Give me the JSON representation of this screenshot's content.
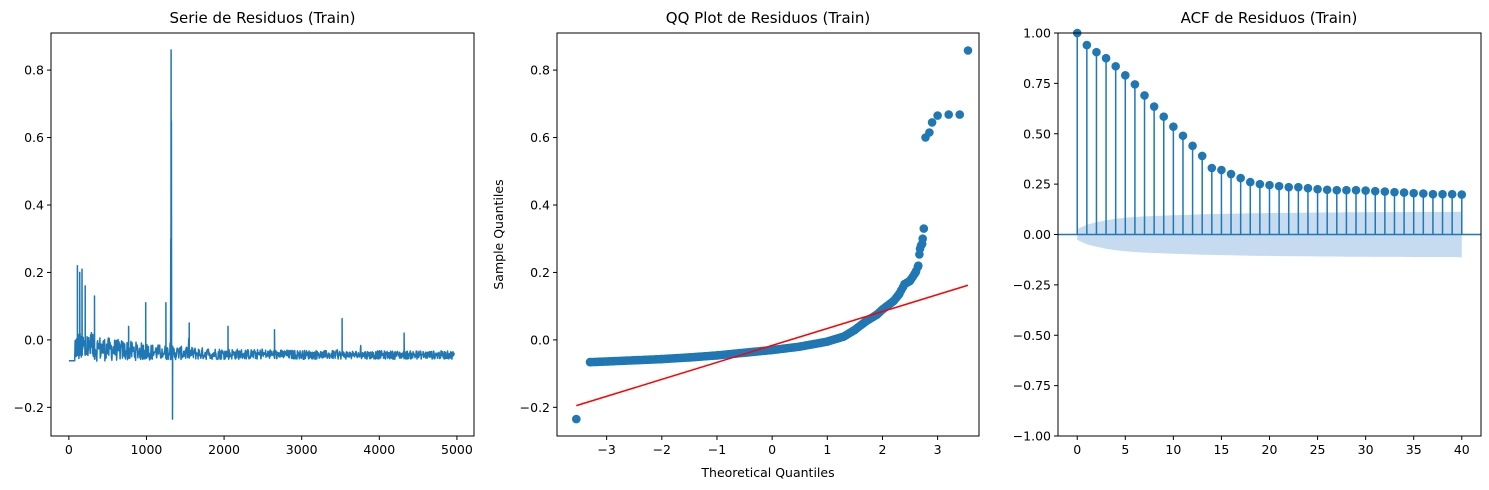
{
  "colors": {
    "series": "#1f77b4",
    "ref_line": "#ff0000",
    "conf_band": "#c6dbef",
    "axes": "#000000"
  },
  "chart_data": [
    {
      "type": "line",
      "title": "Serie de Residuos (Train)",
      "xlabel": "",
      "ylabel": "",
      "xlim": [
        -230,
        5220
      ],
      "ylim": [
        -0.285,
        0.91
      ],
      "xticks": [
        0,
        1000,
        2000,
        3000,
        4000,
        5000
      ],
      "xtick_labels": [
        "0",
        "1000",
        "2000",
        "3000",
        "4000",
        "5000"
      ],
      "yticks": [
        -0.2,
        0.0,
        0.2,
        0.4,
        0.6,
        0.8
      ],
      "ytick_labels": [
        "−0.2",
        "0.0",
        "0.2",
        "0.4",
        "0.6",
        "0.8"
      ],
      "n_points": 4970,
      "features": {
        "baseline": -0.045,
        "start_flat_value": -0.062,
        "early_spikes": [
          [
            110,
            0.22
          ],
          [
            140,
            0.2
          ],
          [
            170,
            0.21
          ],
          [
            210,
            0.16
          ],
          [
            330,
            0.13
          ],
          [
            770,
            0.04
          ],
          [
            990,
            0.11
          ],
          [
            1250,
            0.11
          ],
          [
            1550,
            0.05
          ],
          [
            2050,
            0.04
          ],
          [
            2650,
            0.03
          ],
          [
            3520,
            0.063
          ],
          [
            4320,
            0.02
          ]
        ],
        "max_spike": [
          1318,
          0.86
        ],
        "min_spike": [
          1335,
          -0.235
        ]
      }
    },
    {
      "type": "scatter",
      "title": "QQ Plot de Residuos (Train)",
      "xlabel": "Theoretical Quantiles",
      "ylabel": "Sample Quantiles",
      "xlim": [
        -3.9,
        3.75
      ],
      "ylim": [
        -0.285,
        0.91
      ],
      "xticks": [
        -3,
        -2,
        -1,
        0,
        1,
        2,
        3
      ],
      "xtick_labels": [
        "−3",
        "−2",
        "−1",
        "0",
        "1",
        "2",
        "3"
      ],
      "yticks": [
        -0.2,
        0.0,
        0.2,
        0.4,
        0.6,
        0.8
      ],
      "ytick_labels": [
        "−0.2",
        "0.0",
        "0.2",
        "0.4",
        "0.6",
        "0.8"
      ],
      "curve": [
        [
          -3.55,
          -0.235
        ],
        [
          -3.3,
          -0.066
        ],
        [
          -3.0,
          -0.064
        ],
        [
          -2.0,
          -0.057
        ],
        [
          -1.5,
          -0.052
        ],
        [
          -1.0,
          -0.046
        ],
        [
          -0.5,
          -0.038
        ],
        [
          0.0,
          -0.03
        ],
        [
          0.5,
          -0.02
        ],
        [
          1.0,
          -0.005
        ],
        [
          1.3,
          0.01
        ],
        [
          1.5,
          0.03
        ],
        [
          1.7,
          0.055
        ],
        [
          1.9,
          0.075
        ],
        [
          2.0,
          0.09
        ],
        [
          2.2,
          0.115
        ],
        [
          2.3,
          0.135
        ],
        [
          2.4,
          0.165
        ],
        [
          2.5,
          0.175
        ],
        [
          2.6,
          0.2
        ],
        [
          2.65,
          0.22
        ],
        [
          2.68,
          0.27
        ],
        [
          2.7,
          0.28
        ],
        [
          2.72,
          0.285
        ],
        [
          2.75,
          0.33
        ],
        [
          2.78,
          0.6
        ],
        [
          2.85,
          0.615
        ],
        [
          2.9,
          0.645
        ],
        [
          3.0,
          0.665
        ],
        [
          3.2,
          0.668
        ],
        [
          3.4,
          0.668
        ],
        [
          3.55,
          0.858
        ]
      ],
      "ref_line": {
        "x": [
          -3.55,
          3.55
        ],
        "y": [
          -0.195,
          0.162
        ]
      }
    },
    {
      "type": "bar",
      "subtype": "stem",
      "title": "ACF de Residuos (Train)",
      "xlabel": "",
      "ylabel": "",
      "xlim": [
        -2,
        42
      ],
      "ylim": [
        -1.0,
        1.0
      ],
      "xticks": [
        0,
        5,
        10,
        15,
        20,
        25,
        30,
        35,
        40
      ],
      "xtick_labels": [
        "0",
        "5",
        "10",
        "15",
        "20",
        "25",
        "30",
        "35",
        "40"
      ],
      "yticks": [
        -1.0,
        -0.75,
        -0.5,
        -0.25,
        0.0,
        0.25,
        0.5,
        0.75,
        1.0
      ],
      "ytick_labels": [
        "−1.00",
        "−0.75",
        "−0.50",
        "−0.25",
        "0.00",
        "0.25",
        "0.50",
        "0.75",
        "1.00"
      ],
      "lags": [
        0,
        1,
        2,
        3,
        4,
        5,
        6,
        7,
        8,
        9,
        10,
        11,
        12,
        13,
        14,
        15,
        16,
        17,
        18,
        19,
        20,
        21,
        22,
        23,
        24,
        25,
        26,
        27,
        28,
        29,
        30,
        31,
        32,
        33,
        34,
        35,
        36,
        37,
        38,
        39,
        40
      ],
      "values": [
        1.0,
        0.94,
        0.905,
        0.875,
        0.835,
        0.79,
        0.745,
        0.69,
        0.635,
        0.585,
        0.535,
        0.49,
        0.44,
        0.39,
        0.33,
        0.32,
        0.3,
        0.28,
        0.26,
        0.25,
        0.245,
        0.24,
        0.235,
        0.235,
        0.23,
        0.225,
        0.222,
        0.22,
        0.22,
        0.22,
        0.218,
        0.215,
        0.213,
        0.21,
        0.208,
        0.205,
        0.203,
        0.2,
        0.2,
        0.2,
        0.198
      ],
      "confidence_band": [
        0.027,
        0.048,
        0.061,
        0.071,
        0.078,
        0.083,
        0.087,
        0.09,
        0.092,
        0.094,
        0.096,
        0.097,
        0.099,
        0.1,
        0.101,
        0.102,
        0.103,
        0.104,
        0.105,
        0.106,
        0.106,
        0.107,
        0.107,
        0.108,
        0.108,
        0.109,
        0.109,
        0.109,
        0.11,
        0.11,
        0.11,
        0.111,
        0.111,
        0.111,
        0.111,
        0.112,
        0.112,
        0.112,
        0.112,
        0.112,
        0.113
      ]
    }
  ]
}
